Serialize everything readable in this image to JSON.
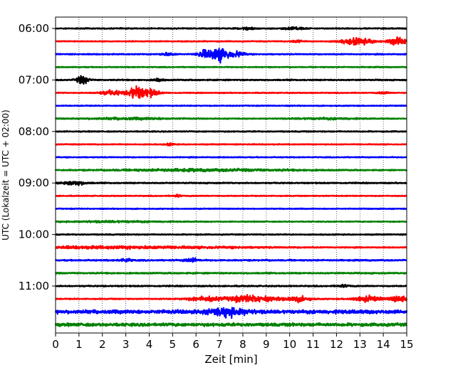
{
  "chart_data": {
    "type": "line",
    "title": "",
    "xlabel": "Zeit  [min]",
    "ylabel": "UTC (Lokalzeit = UTC + 02:00)",
    "xlim": [
      0,
      15
    ],
    "x_ticks": [
      "0",
      "1",
      "2",
      "3",
      "4",
      "5",
      "6",
      "7",
      "8",
      "9",
      "10",
      "11",
      "12",
      "13",
      "14",
      "15"
    ],
    "y_ticks": [
      "06:00",
      "07:00",
      "08:00",
      "09:00",
      "10:00",
      "11:00"
    ],
    "y_tick_rows": [
      0,
      4,
      8,
      12,
      16,
      20
    ],
    "grid": "vertical dotted lines at each minute",
    "row_colors": [
      "#000000",
      "#ff0000",
      "#0000ff",
      "#008000"
    ],
    "rows": [
      {
        "start": "06:00",
        "base_amp": 0.35,
        "events": [
          {
            "t": 8.2,
            "amp": 0.9,
            "dur": 0.6
          },
          {
            "t": 10.2,
            "amp": 1.0,
            "dur": 0.8
          }
        ]
      },
      {
        "start": "06:15",
        "base_amp": 0.3,
        "events": [
          {
            "t": 10.3,
            "amp": 0.8,
            "dur": 0.5
          },
          {
            "t": 12.9,
            "amp": 2.2,
            "dur": 1.4
          },
          {
            "t": 14.6,
            "amp": 2.4,
            "dur": 0.8
          }
        ]
      },
      {
        "start": "06:30",
        "base_amp": 0.35,
        "events": [
          {
            "t": 4.8,
            "amp": 0.9,
            "dur": 0.6
          },
          {
            "t": 6.3,
            "amp": 2.6,
            "dur": 0.5
          },
          {
            "t": 7.0,
            "amp": 4.8,
            "dur": 0.9
          },
          {
            "t": 7.8,
            "amp": 1.6,
            "dur": 0.6
          }
        ]
      },
      {
        "start": "06:45",
        "base_amp": 0.3,
        "events": []
      },
      {
        "start": "07:00",
        "base_amp": 0.4,
        "events": [
          {
            "t": 1.15,
            "amp": 2.8,
            "dur": 0.5
          },
          {
            "t": 4.4,
            "amp": 1.0,
            "dur": 0.4
          }
        ]
      },
      {
        "start": "07:15",
        "base_amp": 0.3,
        "events": [
          {
            "t": 2.4,
            "amp": 1.5,
            "dur": 1.1
          },
          {
            "t": 3.4,
            "amp": 4.2,
            "dur": 0.6
          },
          {
            "t": 4.0,
            "amp": 2.6,
            "dur": 0.8
          },
          {
            "t": 14.0,
            "amp": 0.8,
            "dur": 0.4
          }
        ]
      },
      {
        "start": "07:30",
        "base_amp": 0.3,
        "events": []
      },
      {
        "start": "07:45",
        "base_amp": 0.3,
        "events": [
          {
            "t": 3.2,
            "amp": 0.6,
            "dur": 4.0
          },
          {
            "t": 11.5,
            "amp": 0.5,
            "dur": 3.0
          }
        ]
      },
      {
        "start": "08:00",
        "base_amp": 0.35,
        "events": []
      },
      {
        "start": "08:15",
        "base_amp": 0.3,
        "events": [
          {
            "t": 4.9,
            "amp": 0.7,
            "dur": 0.4
          }
        ]
      },
      {
        "start": "08:30",
        "base_amp": 0.3,
        "events": []
      },
      {
        "start": "08:45",
        "base_amp": 0.35,
        "events": [
          {
            "t": 6.5,
            "amp": 0.7,
            "dur": 8.0
          }
        ]
      },
      {
        "start": "09:00",
        "base_amp": 0.4,
        "events": [
          {
            "t": 0.8,
            "amp": 1.3,
            "dur": 1.0
          }
        ]
      },
      {
        "start": "09:15",
        "base_amp": 0.3,
        "events": [
          {
            "t": 5.2,
            "amp": 0.9,
            "dur": 0.3
          }
        ]
      },
      {
        "start": "09:30",
        "base_amp": 0.3,
        "events": []
      },
      {
        "start": "09:45",
        "base_amp": 0.3,
        "events": [
          {
            "t": 2.5,
            "amp": 0.5,
            "dur": 4.0
          }
        ]
      },
      {
        "start": "10:00",
        "base_amp": 0.35,
        "events": []
      },
      {
        "start": "10:15",
        "base_amp": 0.3,
        "events": [
          {
            "t": 2.5,
            "amp": 0.8,
            "dur": 12.0
          }
        ]
      },
      {
        "start": "10:30",
        "base_amp": 0.45,
        "events": [
          {
            "t": 3.0,
            "amp": 1.2,
            "dur": 0.5
          },
          {
            "t": 5.8,
            "amp": 1.3,
            "dur": 0.6
          }
        ]
      },
      {
        "start": "10:45",
        "base_amp": 0.45,
        "events": []
      },
      {
        "start": "11:00",
        "base_amp": 0.4,
        "events": [
          {
            "t": 12.3,
            "amp": 0.8,
            "dur": 0.5
          }
        ]
      },
      {
        "start": "11:15",
        "base_amp": 0.35,
        "events": [
          {
            "t": 6.3,
            "amp": 1.5,
            "dur": 1.4
          },
          {
            "t": 8.3,
            "amp": 2.3,
            "dur": 2.0
          },
          {
            "t": 10.3,
            "amp": 1.6,
            "dur": 1.2
          },
          {
            "t": 13.3,
            "amp": 1.8,
            "dur": 1.2
          },
          {
            "t": 14.7,
            "amp": 2.0,
            "dur": 0.8
          }
        ]
      },
      {
        "start": "11:30",
        "base_amp": 1.2,
        "events": [
          {
            "t": 7.4,
            "amp": 2.3,
            "dur": 1.6
          }
        ]
      },
      {
        "start": "11:45",
        "base_amp": 1.0,
        "events": []
      }
    ]
  }
}
